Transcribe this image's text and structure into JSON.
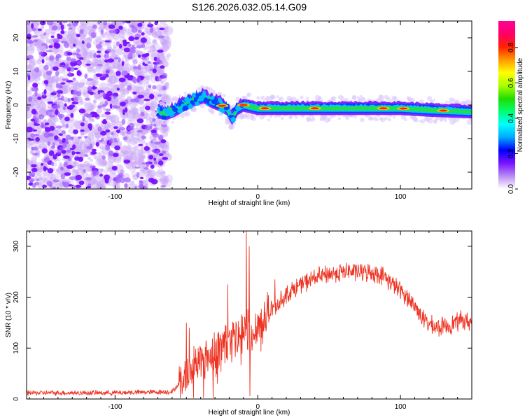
{
  "figure": {
    "title": "S126.2026.032.05.14.G09"
  },
  "chart_data": [
    {
      "id": "spectrogram",
      "type": "heatmap",
      "xlabel": "Height of straight line (km)",
      "ylabel": "Frequency (Hz)",
      "xlim": [
        -162,
        150
      ],
      "ylim": [
        -25,
        25
      ],
      "xticks": [
        -100,
        0,
        100
      ],
      "xtick_labels": [
        "-100",
        "0",
        "100"
      ],
      "yticks": [
        -20,
        -10,
        0,
        10,
        20
      ],
      "ytick_labels": [
        "-20",
        "-10",
        "0",
        "10",
        "20"
      ],
      "noise_region_x": [
        -162,
        -65
      ],
      "noise_freq_range": [
        -25,
        25
      ],
      "trace_points": [
        {
          "x": -70,
          "f": -2.0
        },
        {
          "x": -64,
          "f": -2.5
        },
        {
          "x": -58,
          "f": -1.5
        },
        {
          "x": -52,
          "f": 0.0
        },
        {
          "x": -45,
          "f": 1.5
        },
        {
          "x": -38,
          "f": 2.5
        },
        {
          "x": -32,
          "f": 1.0
        },
        {
          "x": -26,
          "f": 0.0
        },
        {
          "x": -22,
          "f": -1.0
        },
        {
          "x": -18,
          "f": -4.0
        },
        {
          "x": -14,
          "f": -1.0
        },
        {
          "x": -10,
          "f": 0.0
        },
        {
          "x": -5,
          "f": -0.5
        },
        {
          "x": 0,
          "f": -1.0
        },
        {
          "x": 20,
          "f": -1.0
        },
        {
          "x": 40,
          "f": -1.0
        },
        {
          "x": 60,
          "f": -1.0
        },
        {
          "x": 80,
          "f": -1.0
        },
        {
          "x": 100,
          "f": -1.0
        },
        {
          "x": 120,
          "f": -1.5
        },
        {
          "x": 150,
          "f": -2.0
        }
      ],
      "hotspots_x": [
        -25,
        -10,
        5,
        40,
        88,
        102,
        130
      ],
      "colorbar": {
        "label": "Normalized spectral amplitude",
        "range": [
          0,
          0.95
        ],
        "ticks": [
          0.0,
          0.2,
          0.4,
          0.6,
          0.8
        ],
        "tick_labels": [
          "0.0",
          "0.2",
          "0.4",
          "0.6",
          "0.8"
        ],
        "colors": [
          "#ffffff",
          "#b98cf3",
          "#7a12ff",
          "#0000ff",
          "#00aaff",
          "#00ffff",
          "#00ff70",
          "#22dd00",
          "#aaff00",
          "#ffff00",
          "#ff9900",
          "#ff2200",
          "#ff0066",
          "#ff0099"
        ]
      }
    },
    {
      "id": "snr",
      "type": "line",
      "xlabel": "Height of straight line (km)",
      "ylabel": "SNR (10 * v/v)",
      "xlim": [
        -162,
        150
      ],
      "ylim": [
        0,
        330
      ],
      "xticks": [
        -100,
        0,
        100
      ],
      "xtick_labels": [
        "-100",
        "0",
        "100"
      ],
      "yticks": [
        0,
        100,
        200,
        300
      ],
      "ytick_labels": [
        "0",
        "100",
        "200",
        "300"
      ],
      "color": "#ee3322",
      "envelope": [
        {
          "x": -162,
          "y": 12
        },
        {
          "x": -110,
          "y": 12
        },
        {
          "x": -60,
          "y": 14
        },
        {
          "x": -52,
          "y": 40
        },
        {
          "x": -46,
          "y": 65
        },
        {
          "x": -38,
          "y": 80
        },
        {
          "x": -30,
          "y": 95
        },
        {
          "x": -22,
          "y": 110
        },
        {
          "x": -15,
          "y": 115
        },
        {
          "x": -8,
          "y": 125
        },
        {
          "x": 0,
          "y": 145
        },
        {
          "x": 10,
          "y": 175
        },
        {
          "x": 20,
          "y": 205
        },
        {
          "x": 30,
          "y": 225
        },
        {
          "x": 40,
          "y": 238
        },
        {
          "x": 50,
          "y": 245
        },
        {
          "x": 60,
          "y": 250
        },
        {
          "x": 70,
          "y": 250
        },
        {
          "x": 80,
          "y": 248
        },
        {
          "x": 88,
          "y": 242
        },
        {
          "x": 95,
          "y": 225
        },
        {
          "x": 105,
          "y": 200
        },
        {
          "x": 112,
          "y": 175
        },
        {
          "x": 118,
          "y": 150
        },
        {
          "x": 125,
          "y": 140
        },
        {
          "x": 135,
          "y": 145
        },
        {
          "x": 142,
          "y": 155
        },
        {
          "x": 150,
          "y": 150
        }
      ],
      "spikes": [
        {
          "x": -50,
          "y": 150
        },
        {
          "x": -48,
          "y": 140
        },
        {
          "x": -21,
          "y": 225
        },
        {
          "x": -8,
          "y": 330
        },
        {
          "x": -6,
          "y": 300
        },
        {
          "x": 12,
          "y": 235
        }
      ]
    }
  ]
}
